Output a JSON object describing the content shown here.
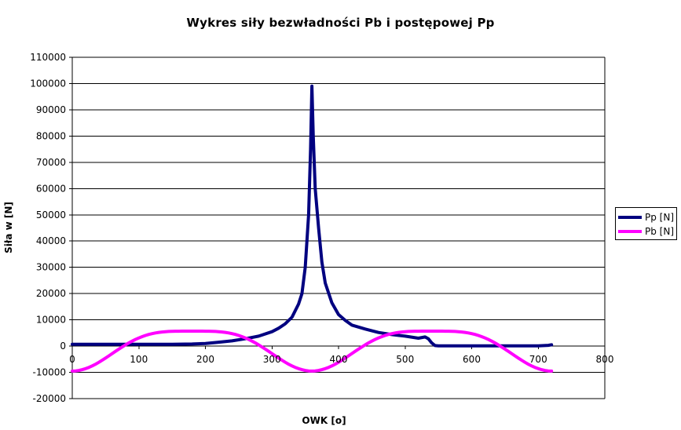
{
  "chart_data": {
    "type": "line",
    "title": "Wykres siły bezwładności Pb i postępowej Pp",
    "xlabel": "OWK [o]",
    "ylabel": "Siła w [N]",
    "xlim": [
      0,
      800
    ],
    "ylim": [
      -20000,
      110000
    ],
    "x_ticks": [
      "0",
      "100",
      "200",
      "300",
      "400",
      "500",
      "600",
      "700",
      "800"
    ],
    "y_ticks": [
      "-20000",
      "-10000",
      "0",
      "10000",
      "20000",
      "30000",
      "40000",
      "50000",
      "60000",
      "70000",
      "80000",
      "90000",
      "100000",
      "110000"
    ],
    "grid": "horizontal",
    "legend_position": "right",
    "series": [
      {
        "name": "Pp [N]",
        "color": "#000080",
        "x": [
          0,
          50,
          100,
          150,
          180,
          200,
          220,
          240,
          260,
          280,
          300,
          310,
          320,
          330,
          340,
          345,
          350,
          355,
          358,
          360,
          362,
          365,
          370,
          375,
          380,
          390,
          400,
          410,
          420,
          440,
          460,
          480,
          500,
          520,
          530,
          535,
          540,
          545,
          550,
          560,
          600,
          650,
          700,
          715,
          720
        ],
        "y": [
          700,
          700,
          700,
          700,
          800,
          1000,
          1500,
          2000,
          2800,
          3800,
          5500,
          6800,
          8500,
          11000,
          16000,
          20000,
          30000,
          50000,
          75000,
          99000,
          80000,
          60000,
          45000,
          32000,
          24000,
          16500,
          12000,
          9800,
          8000,
          6500,
          5200,
          4400,
          3800,
          3000,
          3500,
          2800,
          1200,
          200,
          100,
          100,
          100,
          100,
          100,
          300,
          500
        ]
      },
      {
        "name": "Pb [N]",
        "color": "#ff00ff",
        "function": "cos_deg",
        "amplitude": -9500,
        "second_order": 0.25,
        "x_range": [
          0,
          720
        ],
        "step": 5
      }
    ]
  }
}
